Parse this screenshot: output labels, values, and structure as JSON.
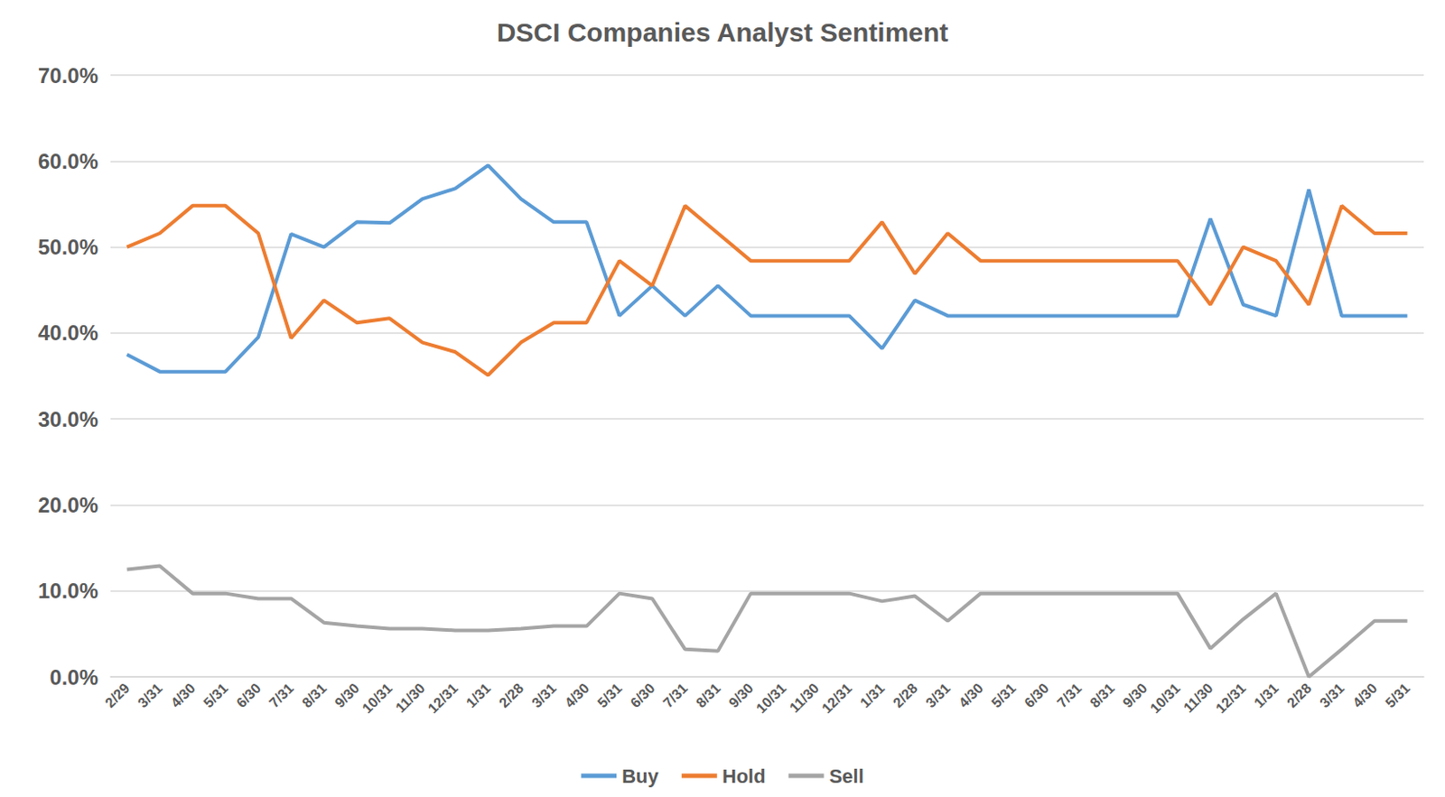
{
  "chart_data": {
    "type": "line",
    "title": "DSCI Companies Analyst Sentiment",
    "categories": [
      "2/29",
      "3/31",
      "4/30",
      "5/31",
      "6/30",
      "7/31",
      "8/31",
      "9/30",
      "10/31",
      "11/30",
      "12/31",
      "1/31",
      "2/28",
      "3/31",
      "4/30",
      "5/31",
      "6/30",
      "7/31",
      "8/31",
      "9/30",
      "10/31",
      "11/30",
      "12/31",
      "1/31",
      "2/28",
      "3/31",
      "4/30",
      "5/31",
      "6/30",
      "7/31",
      "8/31",
      "9/30",
      "10/31",
      "11/30",
      "12/31",
      "1/31",
      "2/28",
      "3/31",
      "4/30",
      "5/31"
    ],
    "series": [
      {
        "name": "Buy",
        "color": "#5B9BD5",
        "values": [
          37.5,
          35.5,
          35.5,
          35.5,
          39.5,
          51.5,
          50.0,
          52.9,
          52.8,
          55.6,
          56.8,
          59.5,
          55.6,
          52.9,
          52.9,
          42.0,
          45.5,
          42.0,
          45.5,
          42.0,
          42.0,
          42.0,
          42.0,
          38.2,
          43.8,
          42.0,
          42.0,
          42.0,
          42.0,
          42.0,
          42.0,
          42.0,
          42.0,
          53.3,
          43.3,
          42.0,
          56.7,
          42.0,
          42.0,
          42.0
        ]
      },
      {
        "name": "Hold",
        "color": "#ED7D31",
        "values": [
          50.0,
          51.6,
          54.8,
          54.8,
          51.6,
          39.4,
          43.8,
          41.2,
          41.7,
          38.9,
          37.8,
          35.1,
          38.9,
          41.2,
          41.2,
          48.4,
          45.5,
          54.8,
          51.6,
          48.4,
          48.4,
          48.4,
          48.4,
          52.9,
          46.9,
          51.6,
          48.4,
          48.4,
          48.4,
          48.4,
          48.4,
          48.4,
          48.4,
          43.3,
          50.0,
          48.4,
          43.3,
          54.8,
          51.6,
          51.6
        ]
      },
      {
        "name": "Sell",
        "color": "#A5A5A5",
        "values": [
          12.5,
          12.9,
          9.7,
          9.7,
          9.1,
          9.1,
          6.3,
          5.9,
          5.6,
          5.6,
          5.4,
          5.4,
          5.6,
          5.9,
          5.9,
          9.7,
          9.1,
          3.2,
          3.0,
          9.7,
          9.7,
          9.7,
          9.7,
          8.8,
          9.4,
          6.5,
          9.7,
          9.7,
          9.7,
          9.7,
          9.7,
          9.7,
          9.7,
          3.3,
          6.7,
          9.7,
          0.0,
          3.2,
          6.5,
          6.5
        ]
      }
    ],
    "ylim": [
      0,
      70
    ],
    "yticks": [
      {
        "value": 0,
        "label": "0.0%"
      },
      {
        "value": 10,
        "label": "10.0%"
      },
      {
        "value": 20,
        "label": "20.0%"
      },
      {
        "value": 30,
        "label": "30.0%"
      },
      {
        "value": 40,
        "label": "40.0%"
      },
      {
        "value": 50,
        "label": "50.0%"
      },
      {
        "value": 60,
        "label": "60.0%"
      },
      {
        "value": 70,
        "label": "70.0%"
      }
    ],
    "grid": true,
    "legend": "bottom"
  }
}
